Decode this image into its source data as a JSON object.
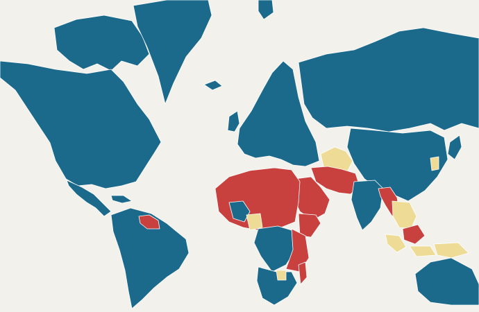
{
  "map": {
    "projection": "world map",
    "background_color": "#f2f1ec",
    "border_color": "#ffffff",
    "legend_visible": false,
    "categories": [
      {
        "key": "blue",
        "color": "#1b6a8c"
      },
      {
        "key": "red",
        "color": "#c8413f"
      },
      {
        "key": "yellow",
        "color": "#eedb95"
      }
    ],
    "regions": [
      {
        "name": "greenland",
        "category": "blue"
      },
      {
        "name": "canadian-arctic",
        "category": "blue"
      },
      {
        "name": "north-america",
        "category": "blue"
      },
      {
        "name": "central-america",
        "category": "blue"
      },
      {
        "name": "caribbean",
        "category": "blue"
      },
      {
        "name": "south-america",
        "category": "blue"
      },
      {
        "name": "guianas",
        "category": "red"
      },
      {
        "name": "iceland",
        "category": "blue"
      },
      {
        "name": "svalbard",
        "category": "blue"
      },
      {
        "name": "europe",
        "category": "blue"
      },
      {
        "name": "britain",
        "category": "blue"
      },
      {
        "name": "russia-asia",
        "category": "blue"
      },
      {
        "name": "east-asia",
        "category": "blue"
      },
      {
        "name": "japan",
        "category": "blue"
      },
      {
        "name": "north-africa",
        "category": "red"
      },
      {
        "name": "horn-of-africa",
        "category": "red"
      },
      {
        "name": "west-africa-coast",
        "category": "blue"
      },
      {
        "name": "nigeria",
        "category": "yellow"
      },
      {
        "name": "central-africa",
        "category": "blue"
      },
      {
        "name": "east-africa",
        "category": "red"
      },
      {
        "name": "southern-africa",
        "category": "blue"
      },
      {
        "name": "zimbabwe",
        "category": "yellow"
      },
      {
        "name": "madagascar",
        "category": "red"
      },
      {
        "name": "arabian-peninsula",
        "category": "red"
      },
      {
        "name": "central-asia",
        "category": "yellow"
      },
      {
        "name": "iran-afghanistan",
        "category": "red"
      },
      {
        "name": "south-asia",
        "category": "blue"
      },
      {
        "name": "myanmar",
        "category": "red"
      },
      {
        "name": "korea",
        "category": "yellow"
      },
      {
        "name": "southeast-asia",
        "category": "yellow"
      },
      {
        "name": "borneo",
        "category": "red"
      },
      {
        "name": "indonesia",
        "category": "yellow"
      },
      {
        "name": "new-guinea",
        "category": "yellow"
      },
      {
        "name": "australia",
        "category": "blue"
      }
    ]
  }
}
